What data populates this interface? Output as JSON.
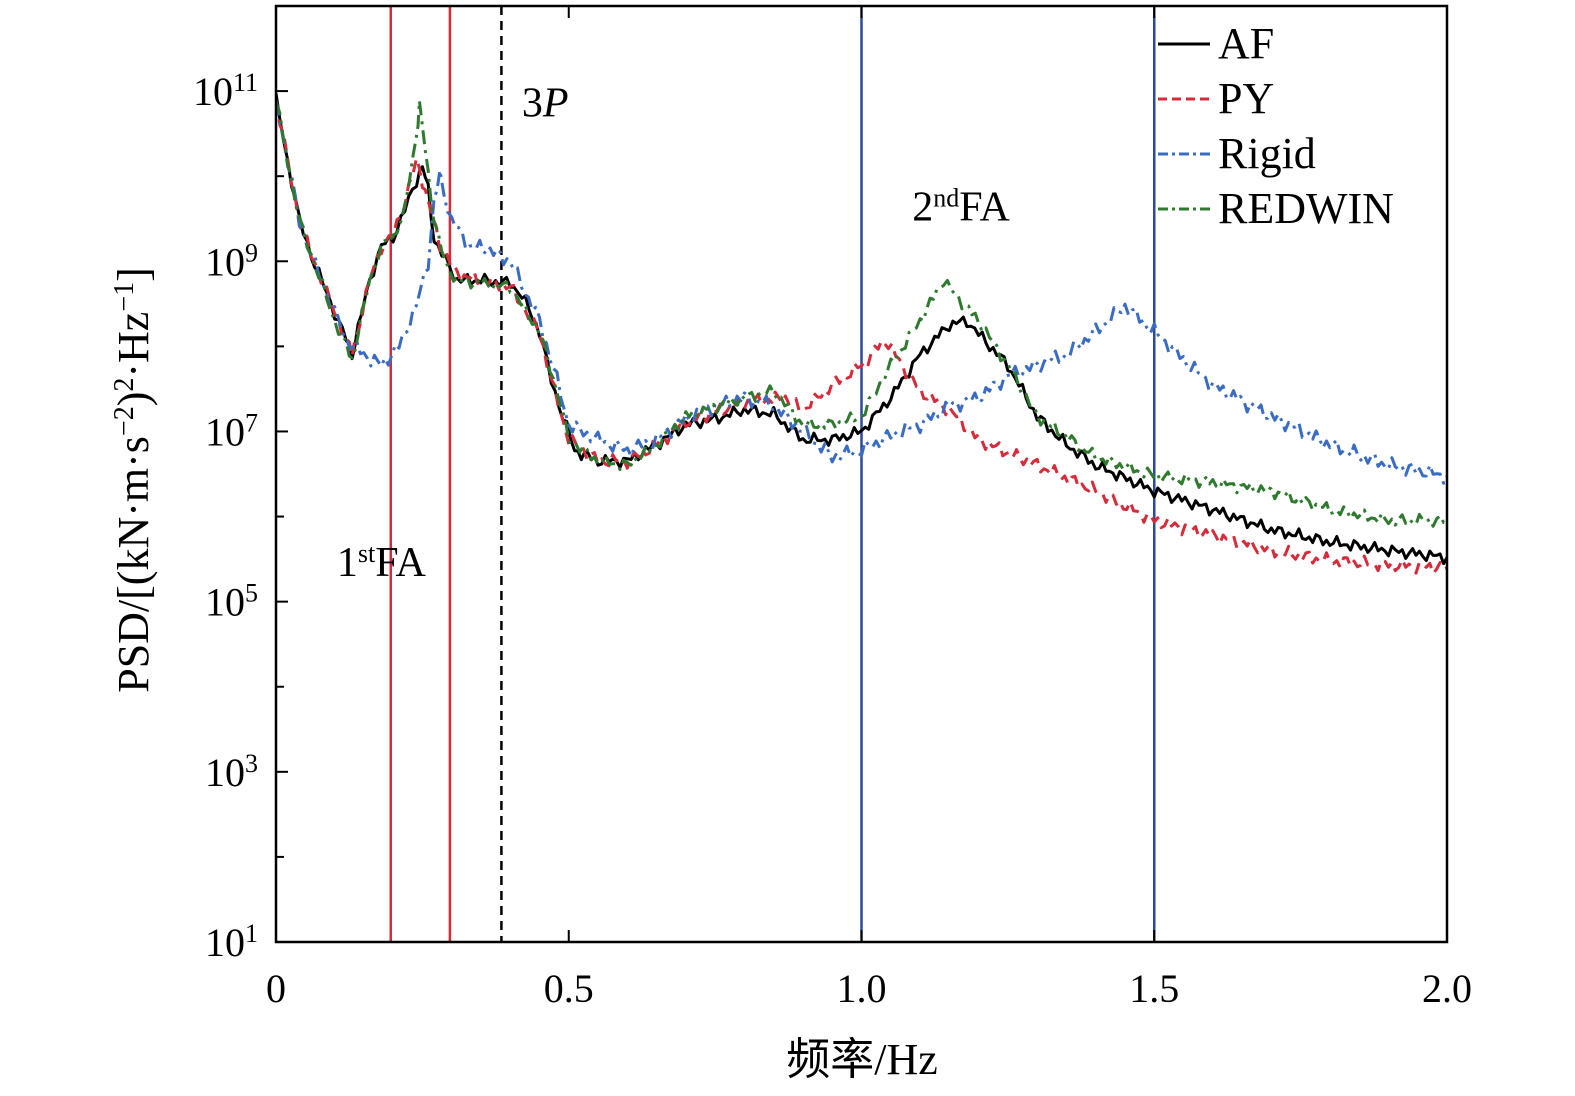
{
  "chart_data": {
    "type": "line",
    "xlabel": "频率/Hz",
    "ylabel_parts": {
      "a": "PSD/[(kN·m·s",
      "a_sup": "−2",
      "b": ")",
      "b_sup": "2",
      "c": "·Hz",
      "c_sup": "−1",
      "d": "]"
    },
    "xlim": [
      0,
      2.0
    ],
    "ylim": [
      10,
      1000000000000
    ],
    "yscale": "log",
    "grid": false,
    "legend_position": "top-right",
    "x_ticks": [
      {
        "value": 0,
        "label": "0"
      },
      {
        "value": 0.5,
        "label": "0.5"
      },
      {
        "value": 1.0,
        "label": "1.0"
      },
      {
        "value": 1.5,
        "label": "1.5"
      },
      {
        "value": 2.0,
        "label": "2.0"
      }
    ],
    "y_ticks": [
      {
        "exp": 1,
        "base": "10",
        "sup": "1"
      },
      {
        "exp": 3,
        "base": "10",
        "sup": "3"
      },
      {
        "exp": 5,
        "base": "10",
        "sup": "5"
      },
      {
        "exp": 7,
        "base": "10",
        "sup": "7"
      },
      {
        "exp": 9,
        "base": "10",
        "sup": "9"
      },
      {
        "exp": 11,
        "base": "10",
        "sup": "11"
      }
    ],
    "vertical_lines": [
      {
        "x": 0.196,
        "color": "#d62b3a",
        "style": "solid"
      },
      {
        "x": 0.297,
        "color": "#d62b3a",
        "style": "solid"
      },
      {
        "x": 0.385,
        "color": "#000000",
        "style": "dashed"
      },
      {
        "x": 1.0,
        "color": "#2a4a9a",
        "style": "solid"
      },
      {
        "x": 1.5,
        "color": "#2a4a9a",
        "style": "solid"
      }
    ],
    "annotations": [
      {
        "id": "first-fa",
        "base": "1",
        "sup": "st",
        "rest": "FA",
        "x": 0.18,
        "y": 200000
      },
      {
        "id": "second-fa",
        "base": "2",
        "sup": "nd",
        "rest": "FA",
        "x": 1.17,
        "y": 3000000000
      },
      {
        "id": "three-p",
        "text_upright": "3",
        "text_italic": "P",
        "x": 0.42,
        "y": 50000000000
      }
    ],
    "series": [
      {
        "name": "AF",
        "color": "#000000",
        "dash": "",
        "width": 3,
        "points": [
          [
            0,
            80000000000
          ],
          [
            0.02,
            15000000000
          ],
          [
            0.04,
            3000000000
          ],
          [
            0.06,
            1200000000
          ],
          [
            0.08,
            550000000
          ],
          [
            0.1,
            250000000
          ],
          [
            0.12,
            120000000
          ],
          [
            0.13,
            80000000
          ],
          [
            0.14,
            160000000
          ],
          [
            0.16,
            600000000
          ],
          [
            0.18,
            1500000000
          ],
          [
            0.2,
            1900000000
          ],
          [
            0.22,
            4000000000
          ],
          [
            0.24,
            9000000000
          ],
          [
            0.25,
            13000000000
          ],
          [
            0.26,
            7000000000
          ],
          [
            0.27,
            1800000000
          ],
          [
            0.29,
            1000000000
          ],
          [
            0.31,
            600000000
          ],
          [
            0.35,
            600000000
          ],
          [
            0.4,
            550000000
          ],
          [
            0.42,
            400000000
          ],
          [
            0.45,
            150000000
          ],
          [
            0.47,
            40000000
          ],
          [
            0.49,
            15000000
          ],
          [
            0.51,
            6000000
          ],
          [
            0.55,
            4500000
          ],
          [
            0.6,
            4500000
          ],
          [
            0.65,
            7000000
          ],
          [
            0.7,
            12000000
          ],
          [
            0.75,
            14000000
          ],
          [
            0.8,
            18000000
          ],
          [
            0.85,
            16000000
          ],
          [
            0.9,
            8000000
          ],
          [
            0.95,
            8000000
          ],
          [
            1.0,
            10000000
          ],
          [
            1.05,
            25000000
          ],
          [
            1.1,
            80000000
          ],
          [
            1.15,
            180000000
          ],
          [
            1.18,
            200000000
          ],
          [
            1.2,
            140000000
          ],
          [
            1.25,
            60000000
          ],
          [
            1.3,
            15000000
          ],
          [
            1.35,
            7000000
          ],
          [
            1.4,
            4000000
          ],
          [
            1.5,
            2000000
          ],
          [
            1.6,
            1200000
          ],
          [
            1.7,
            700000
          ],
          [
            1.8,
            500000
          ],
          [
            1.9,
            400000
          ],
          [
            2.0,
            330000
          ]
        ]
      },
      {
        "name": "PY",
        "color": "#d62b3a",
        "dash": "12,8",
        "width": 3,
        "points": [
          [
            0,
            80000000000
          ],
          [
            0.02,
            15000000000
          ],
          [
            0.04,
            3000000000
          ],
          [
            0.06,
            1200000000
          ],
          [
            0.08,
            550000000
          ],
          [
            0.1,
            250000000
          ],
          [
            0.12,
            120000000
          ],
          [
            0.13,
            80000000
          ],
          [
            0.14,
            160000000
          ],
          [
            0.16,
            600000000
          ],
          [
            0.18,
            1500000000
          ],
          [
            0.2,
            2000000000
          ],
          [
            0.22,
            5000000000
          ],
          [
            0.24,
            15000000000
          ],
          [
            0.25,
            9000000000
          ],
          [
            0.26,
            5000000000
          ],
          [
            0.28,
            1500000000
          ],
          [
            0.31,
            700000000
          ],
          [
            0.35,
            600000000
          ],
          [
            0.4,
            500000000
          ],
          [
            0.45,
            150000000
          ],
          [
            0.47,
            40000000
          ],
          [
            0.5,
            8000000
          ],
          [
            0.55,
            4500000
          ],
          [
            0.6,
            4500000
          ],
          [
            0.65,
            7000000
          ],
          [
            0.7,
            13000000
          ],
          [
            0.8,
            22000000
          ],
          [
            0.87,
            25000000
          ],
          [
            0.9,
            18000000
          ],
          [
            0.95,
            35000000
          ],
          [
            1.0,
            60000000
          ],
          [
            1.04,
            120000000
          ],
          [
            1.07,
            60000000
          ],
          [
            1.1,
            30000000
          ],
          [
            1.15,
            18000000
          ],
          [
            1.2,
            8000000
          ],
          [
            1.3,
            4000000
          ],
          [
            1.4,
            2000000
          ],
          [
            1.5,
            900000
          ],
          [
            1.6,
            600000
          ],
          [
            1.7,
            400000
          ],
          [
            1.8,
            300000
          ],
          [
            1.9,
            270000
          ],
          [
            2.0,
            250000
          ]
        ]
      },
      {
        "name": "Rigid",
        "color": "#3b6cc4",
        "dash": "14,6,3,6",
        "width": 3,
        "points": [
          [
            0,
            80000000000
          ],
          [
            0.02,
            15000000000
          ],
          [
            0.04,
            3000000000
          ],
          [
            0.06,
            1200000000
          ],
          [
            0.08,
            550000000
          ],
          [
            0.1,
            250000000
          ],
          [
            0.12,
            120000000
          ],
          [
            0.15,
            80000000
          ],
          [
            0.18,
            60000000
          ],
          [
            0.21,
            100000000
          ],
          [
            0.24,
            300000000
          ],
          [
            0.26,
            1000000000
          ],
          [
            0.27,
            5000000000
          ],
          [
            0.28,
            10000000000
          ],
          [
            0.3,
            3000000000
          ],
          [
            0.33,
            1500000000
          ],
          [
            0.36,
            1400000000
          ],
          [
            0.4,
            1000000000
          ],
          [
            0.45,
            200000000
          ],
          [
            0.48,
            40000000
          ],
          [
            0.5,
            12000000
          ],
          [
            0.55,
            8000000
          ],
          [
            0.6,
            6000000
          ],
          [
            0.65,
            8000000
          ],
          [
            0.7,
            14000000
          ],
          [
            0.75,
            20000000
          ],
          [
            0.8,
            25000000
          ],
          [
            0.85,
            20000000
          ],
          [
            0.9,
            10000000
          ],
          [
            0.95,
            5000000
          ],
          [
            1.0,
            6000000
          ],
          [
            1.05,
            9000000
          ],
          [
            1.1,
            12000000
          ],
          [
            1.15,
            20000000
          ],
          [
            1.2,
            25000000
          ],
          [
            1.25,
            45000000
          ],
          [
            1.3,
            60000000
          ],
          [
            1.35,
            80000000
          ],
          [
            1.4,
            150000000
          ],
          [
            1.45,
            300000000
          ],
          [
            1.5,
            150000000
          ],
          [
            1.55,
            70000000
          ],
          [
            1.6,
            35000000
          ],
          [
            1.7,
            15000000
          ],
          [
            1.8,
            7000000
          ],
          [
            1.9,
            4000000
          ],
          [
            2.0,
            3000000
          ]
        ]
      },
      {
        "name": "REDWIN",
        "color": "#2f7a2f",
        "dash": "14,6,3,6",
        "width": 3,
        "points": [
          [
            0,
            80000000000
          ],
          [
            0.02,
            15000000000
          ],
          [
            0.04,
            3000000000
          ],
          [
            0.06,
            1200000000
          ],
          [
            0.08,
            500000000
          ],
          [
            0.1,
            200000000
          ],
          [
            0.12,
            100000000
          ],
          [
            0.13,
            70000000
          ],
          [
            0.14,
            140000000
          ],
          [
            0.16,
            600000000
          ],
          [
            0.18,
            1500000000
          ],
          [
            0.2,
            1900000000
          ],
          [
            0.22,
            4000000000
          ],
          [
            0.24,
            30000000000
          ],
          [
            0.245,
            70000000000
          ],
          [
            0.255,
            20000000000
          ],
          [
            0.27,
            3000000000
          ],
          [
            0.29,
            900000000
          ],
          [
            0.31,
            600000000
          ],
          [
            0.35,
            550000000
          ],
          [
            0.4,
            500000000
          ],
          [
            0.45,
            150000000
          ],
          [
            0.48,
            30000000
          ],
          [
            0.5,
            8000000
          ],
          [
            0.55,
            4500000
          ],
          [
            0.6,
            4000000
          ],
          [
            0.65,
            7000000
          ],
          [
            0.7,
            15000000
          ],
          [
            0.8,
            25000000
          ],
          [
            0.85,
            30000000
          ],
          [
            0.9,
            12000000
          ],
          [
            0.95,
            12000000
          ],
          [
            1.0,
            15000000
          ],
          [
            1.05,
            60000000
          ],
          [
            1.1,
            200000000
          ],
          [
            1.14,
            600000000
          ],
          [
            1.16,
            400000000
          ],
          [
            1.2,
            200000000
          ],
          [
            1.25,
            60000000
          ],
          [
            1.3,
            15000000
          ],
          [
            1.4,
            5000000
          ],
          [
            1.5,
            3000000
          ],
          [
            1.6,
            2500000
          ],
          [
            1.7,
            2000000
          ],
          [
            1.8,
            1200000
          ],
          [
            1.9,
            900000
          ],
          [
            2.0,
            900000
          ]
        ]
      }
    ]
  }
}
